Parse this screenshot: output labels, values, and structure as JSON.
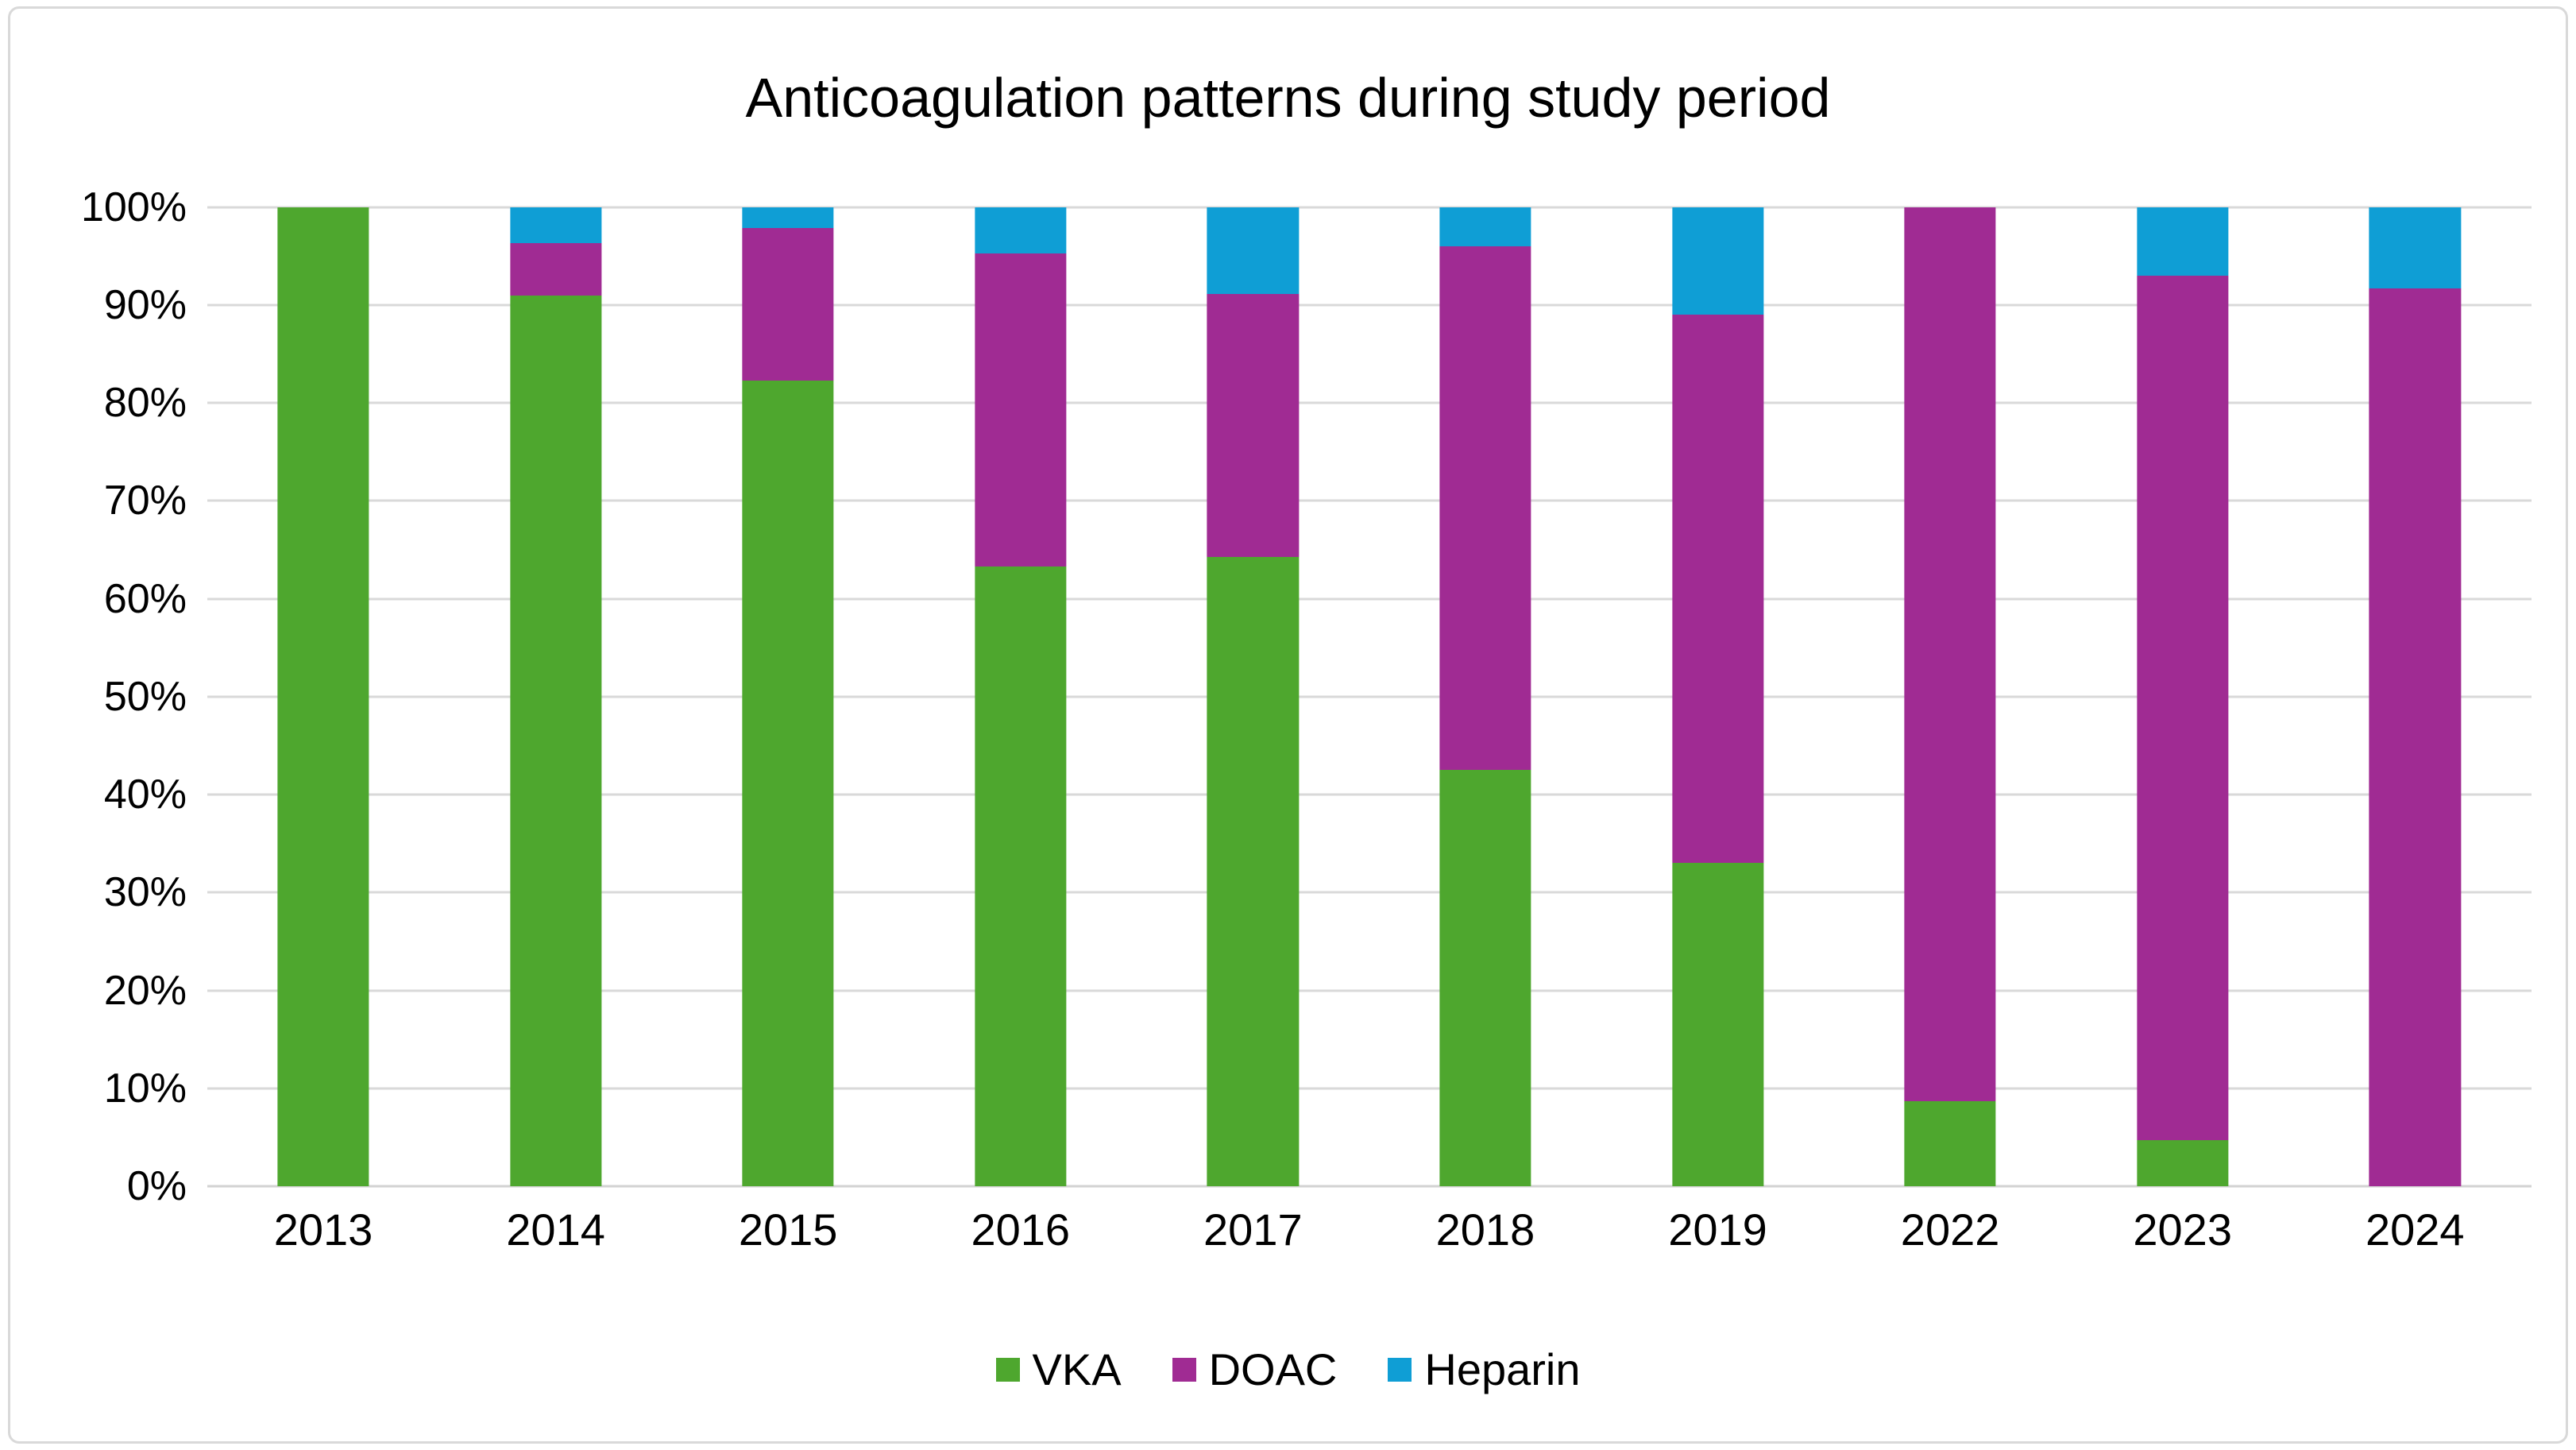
{
  "chart": {
    "title": "Anticoagulation patterns during study period"
  },
  "chart_data": {
    "type": "bar",
    "stacked": true,
    "units": "percent",
    "title": "Anticoagulation patterns during study period",
    "xlabel": "",
    "ylabel": "",
    "categories": [
      "2013",
      "2014",
      "2015",
      "2016",
      "2017",
      "2018",
      "2019",
      "2022",
      "2023",
      "2024"
    ],
    "series": [
      {
        "name": "VKA",
        "color": "#4EA72E",
        "values": [
          100,
          91,
          82.3,
          63.3,
          64.3,
          42.5,
          33,
          8.7,
          4.7,
          0
        ]
      },
      {
        "name": "DOAC",
        "color": "#A02B93",
        "values": [
          0,
          5.3,
          15.6,
          32,
          26.8,
          53.5,
          56,
          91.3,
          88.3,
          91.7
        ]
      },
      {
        "name": "Heparin",
        "color": "#0F9ED5",
        "values": [
          0,
          3.7,
          2.1,
          4.7,
          8.9,
          4,
          11,
          0,
          7,
          8.3
        ]
      }
    ],
    "ylim": [
      0,
      100
    ],
    "ytick_step": 10,
    "ytick_labels": [
      "0%",
      "10%",
      "20%",
      "30%",
      "40%",
      "50%",
      "60%",
      "70%",
      "80%",
      "90%",
      "100%"
    ],
    "grid": true,
    "legend_position": "bottom",
    "legend_entries": [
      "VKA",
      "DOAC",
      "Heparin"
    ]
  },
  "colors": {
    "background": "#FFFFFF",
    "frame_border": "#D9D9D9",
    "gridline": "#D9D9D9",
    "text": "#000000",
    "vka": "#4EA72E",
    "doac": "#A02B93",
    "heparin": "#0F9ED5"
  }
}
